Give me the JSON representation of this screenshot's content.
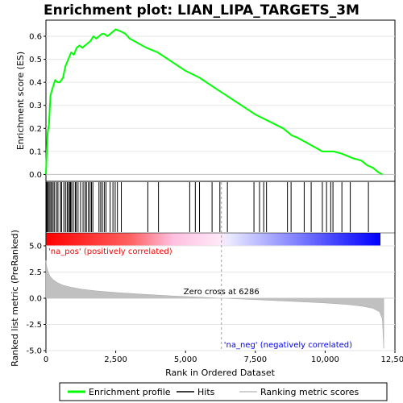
{
  "chart_data": {
    "type": "line",
    "title": "Enrichment plot: LIAN_LIPA_TARGETS_3M",
    "top_panel": {
      "ylabel": "Enrichment score (ES)",
      "ylim": [
        -0.03,
        0.67
      ],
      "yticks": [
        "0.0",
        "0.1",
        "0.2",
        "0.3",
        "0.4",
        "0.5",
        "0.6"
      ],
      "ytick_values": [
        0.0,
        0.1,
        0.2,
        0.3,
        0.4,
        0.5,
        0.6
      ],
      "series": [
        {
          "name": "Enrichment profile",
          "color": "#00ff00",
          "x": [
            0,
            30,
            60,
            110,
            160,
            200,
            250,
            330,
            420,
            500,
            610,
            700,
            800,
            900,
            1000,
            1100,
            1200,
            1300,
            1400,
            1500,
            1600,
            1700,
            1800,
            1900,
            2000,
            2100,
            2200,
            2300,
            2400,
            2500,
            2600,
            2700,
            2850,
            3000,
            3300,
            3600,
            4000,
            4500,
            5000,
            5500,
            6000,
            6500,
            7000,
            7500,
            8000,
            8500,
            8800,
            9000,
            9300,
            9600,
            9900,
            10000,
            10150,
            10300,
            10600,
            10800,
            11000,
            11300,
            11500,
            11700,
            11900,
            12050
          ],
          "y": [
            0.0,
            0.1,
            0.18,
            0.22,
            0.34,
            0.36,
            0.38,
            0.41,
            0.4,
            0.4,
            0.42,
            0.47,
            0.5,
            0.53,
            0.52,
            0.55,
            0.56,
            0.55,
            0.56,
            0.57,
            0.58,
            0.6,
            0.59,
            0.6,
            0.61,
            0.61,
            0.6,
            0.61,
            0.62,
            0.63,
            0.625,
            0.62,
            0.61,
            0.59,
            0.57,
            0.55,
            0.53,
            0.49,
            0.45,
            0.42,
            0.38,
            0.34,
            0.3,
            0.26,
            0.23,
            0.2,
            0.17,
            0.16,
            0.14,
            0.12,
            0.1,
            0.1,
            0.1,
            0.1,
            0.09,
            0.08,
            0.07,
            0.06,
            0.04,
            0.03,
            0.01,
            0.0
          ]
        }
      ]
    },
    "hits_panel": {
      "hit_positions": [
        20,
        50,
        80,
        120,
        170,
        210,
        260,
        310,
        380,
        430,
        520,
        560,
        640,
        700,
        760,
        800,
        850,
        880,
        920,
        980,
        1050,
        1080,
        1150,
        1240,
        1330,
        1400,
        1450,
        1520,
        1580,
        1630,
        1680,
        1900,
        1960,
        2020,
        2090,
        2150,
        2300,
        2400,
        2480,
        2560,
        2700,
        3650,
        4030,
        5150,
        5350,
        5500,
        5950,
        6230,
        6500,
        7450,
        7650,
        7800,
        7900,
        8650,
        8780,
        9250,
        9500,
        9900,
        10050,
        10200,
        10280,
        10600,
        10900,
        11550
      ]
    },
    "metric_panel": {
      "ylabel": "Ranked list metric (PreRanked)",
      "ylim": [
        -5.0,
        5.0
      ],
      "yticks": [
        "5.0",
        "2.5",
        "0.0",
        "-2.5",
        "-5.0"
      ],
      "ytick_values": [
        5.0,
        2.5,
        0.0,
        -2.5,
        -5.0
      ],
      "x": [
        0,
        30,
        80,
        150,
        250,
        400,
        600,
        900,
        1300,
        1800,
        2500,
        3500,
        4500,
        5500,
        6286,
        7000,
        8000,
        9000,
        10000,
        10800,
        11300,
        11700,
        11950,
        12050,
        12100
      ],
      "y": [
        3.6,
        3.0,
        2.5,
        2.1,
        1.8,
        1.5,
        1.25,
        1.05,
        0.85,
        0.7,
        0.55,
        0.38,
        0.22,
        0.1,
        0.0,
        -0.08,
        -0.2,
        -0.32,
        -0.45,
        -0.6,
        -0.75,
        -0.95,
        -1.3,
        -2.0,
        -4.8
      ],
      "color": "#c0c0c0",
      "zero_cross_label": "Zero cross at 6286",
      "zero_cross_x": 6286,
      "pos_label": "'na_pos' (positively correlated)",
      "neg_label": "'na_neg' (negatively correlated)",
      "pos_color": "#ff0000",
      "neg_color": "#0000ff"
    },
    "xlabel": "Rank in Ordered Dataset",
    "xlim": [
      0,
      12500
    ],
    "xticks": [
      "0",
      "2,500",
      "5,000",
      "7,500",
      "10,000",
      "12,500"
    ],
    "xtick_values": [
      0,
      2500,
      5000,
      7500,
      10000,
      12500
    ],
    "total_ranks": 12100,
    "legend": {
      "placement": "bottom",
      "entries": [
        {
          "label": "Enrichment profile",
          "color": "#00ff00"
        },
        {
          "label": "Hits",
          "color": "#000000"
        },
        {
          "label": "Ranking metric scores",
          "color": "#c0c0c0"
        }
      ]
    }
  }
}
